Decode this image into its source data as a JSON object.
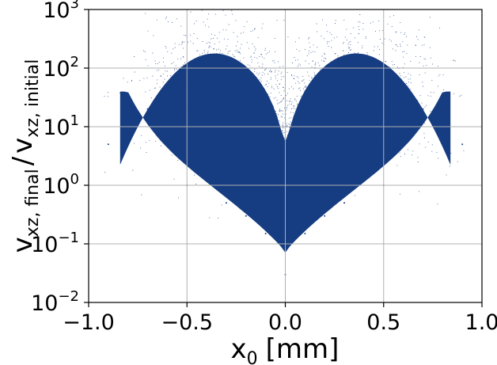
{
  "chart_data": {
    "type": "scatter",
    "xlabel": "x",
    "xlabel_sub": "0",
    "xlabel_unit": "[mm]",
    "ylabel": "v / v",
    "ylabel_parts": {
      "numerator": "v",
      "numerator_sub": "xz, final",
      "slash": "/",
      "denominator": "v",
      "denominator_sub": "xz, initial"
    },
    "xlim": [
      -1.0,
      1.0
    ],
    "ylim": [
      0.01,
      1000
    ],
    "yscale": "log",
    "xticks": [
      "−1.0",
      "−0.5",
      "0.0",
      "0.5",
      "1.0"
    ],
    "xtick_values": [
      -1.0,
      -0.5,
      0.0,
      0.5,
      1.0
    ],
    "ytick_values": [
      0.01,
      0.1,
      1,
      10,
      100,
      1000
    ],
    "ytick_base": "10",
    "ytick_exponents": [
      "−2",
      "−1",
      "0",
      "1",
      "2",
      "3"
    ],
    "grid": true,
    "marker_color": "#163d82",
    "shape": "heart-shaped dense point cloud: two lobes peaking near x = ±0.35, v ≈ 10–100; central cusp near x = 0 reaching down to ≈ 0.02",
    "series": [
      {
        "points_sample": [
          [
            -0.9,
            5
          ],
          [
            -0.8,
            10
          ],
          [
            -0.7,
            20
          ],
          [
            -0.6,
            40
          ],
          [
            -0.5,
            60
          ],
          [
            -0.4,
            80
          ],
          [
            -0.3,
            70
          ],
          [
            -0.2,
            40
          ],
          [
            -0.1,
            15
          ],
          [
            -0.05,
            5
          ],
          [
            0.0,
            0.1
          ],
          [
            0.0,
            0.03
          ],
          [
            0.05,
            5
          ],
          [
            0.1,
            15
          ],
          [
            0.2,
            40
          ],
          [
            0.3,
            70
          ],
          [
            0.4,
            80
          ],
          [
            0.5,
            60
          ],
          [
            0.6,
            40
          ],
          [
            0.7,
            20
          ],
          [
            0.8,
            10
          ],
          [
            0.9,
            5
          ],
          [
            -0.5,
            1
          ],
          [
            0.5,
            1
          ],
          [
            -0.3,
            0.5
          ],
          [
            0.3,
            0.5
          ],
          [
            -0.2,
            0.3
          ],
          [
            0.2,
            0.3
          ],
          [
            -0.1,
            0.15
          ],
          [
            0.1,
            0.15
          ]
        ]
      }
    ]
  }
}
